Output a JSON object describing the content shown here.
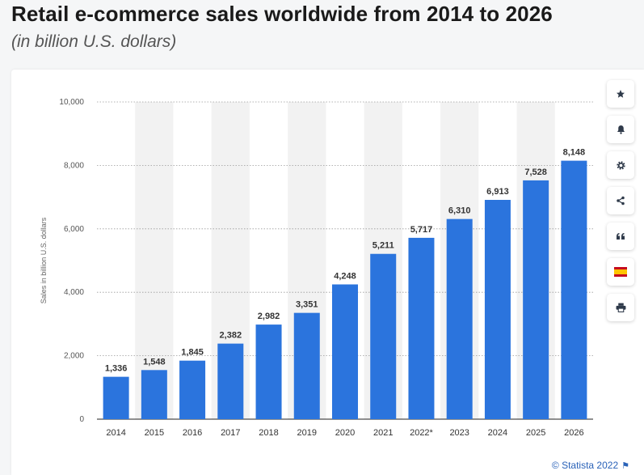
{
  "header": {
    "title": "Retail e-commerce sales worldwide from 2014 to 2026",
    "subtitle": "(in billion U.S. dollars)"
  },
  "chart_data": {
    "type": "bar",
    "categories": [
      "2014",
      "2015",
      "2016",
      "2017",
      "2018",
      "2019",
      "2020",
      "2021",
      "2022*",
      "2023",
      "2024",
      "2025",
      "2026"
    ],
    "values": [
      1336,
      1548,
      1845,
      2382,
      2982,
      3351,
      4248,
      5211,
      5717,
      6310,
      6913,
      7528,
      8148
    ],
    "value_labels": [
      "1,336",
      "1,548",
      "1,845",
      "2,382",
      "2,982",
      "3,351",
      "4,248",
      "5,211",
      "5,717",
      "6,310",
      "6,913",
      "7,528",
      "8,148"
    ],
    "ylabel": "Sales in billion U.S. dollars",
    "ylim": [
      0,
      10000
    ],
    "yticks": [
      0,
      2000,
      4000,
      6000,
      8000,
      10000
    ],
    "ytick_labels": [
      "0",
      "2,000",
      "4,000",
      "6,000",
      "8,000",
      "10,000"
    ],
    "grid": true,
    "bar_color": "#2b74dd",
    "band_color": "#f2f2f2"
  },
  "toolbar": {
    "buttons": [
      {
        "name": "bookmark-button",
        "icon": "star-icon"
      },
      {
        "name": "notification-button",
        "icon": "bell-icon"
      },
      {
        "name": "settings-button",
        "icon": "gear-icon"
      },
      {
        "name": "share-button",
        "icon": "share-icon"
      },
      {
        "name": "cite-button",
        "icon": "quote-icon"
      },
      {
        "name": "language-button",
        "icon": "spain-flag-icon"
      },
      {
        "name": "print-button",
        "icon": "print-icon"
      }
    ]
  },
  "footer": {
    "credit": "© Statista 2022"
  }
}
